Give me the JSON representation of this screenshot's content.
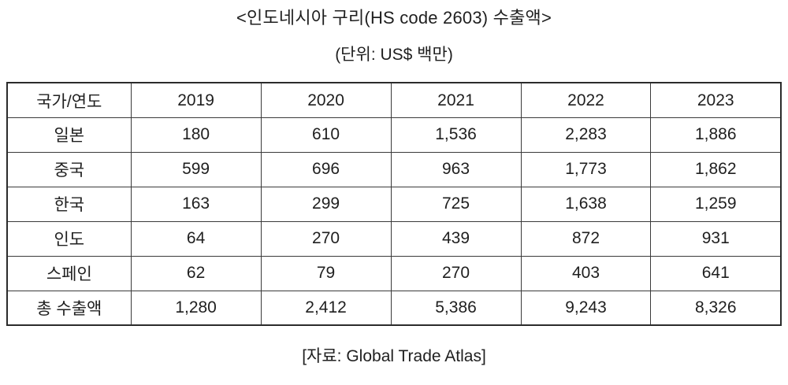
{
  "title": "<인도네시아 구리(HS code 2603) 수출액>",
  "unit_note": "(단위: US$ 백만)",
  "source": "[자료: Global Trade Atlas]",
  "colors": {
    "text": "#1f1f1f",
    "border_outer": "#2b2b2b",
    "border_inner": "#3a3a3a",
    "background": "#ffffff"
  },
  "chart_data": {
    "type": "table",
    "title": "<인도네시아 구리(HS code 2603) 수출액>",
    "unit": "(단위: US$ 백만)",
    "source": "[자료: Global Trade Atlas]",
    "columns": [
      "국가/연도",
      "2019",
      "2020",
      "2021",
      "2022",
      "2023"
    ],
    "rows": [
      {
        "label": "일본",
        "values": [
          "180",
          "610",
          "1,536",
          "2,283",
          "1,886"
        ]
      },
      {
        "label": "중국",
        "values": [
          "599",
          "696",
          "963",
          "1,773",
          "1,862"
        ]
      },
      {
        "label": "한국",
        "values": [
          "163",
          "299",
          "725",
          "1,638",
          "1,259"
        ]
      },
      {
        "label": "인도",
        "values": [
          "64",
          "270",
          "439",
          "872",
          "931"
        ]
      },
      {
        "label": "스페인",
        "values": [
          "62",
          "79",
          "270",
          "403",
          "641"
        ]
      },
      {
        "label": "총 수출액",
        "values": [
          "1,280",
          "2,412",
          "5,386",
          "9,243",
          "8,326"
        ]
      }
    ],
    "numeric_rows": [
      {
        "label": "일본",
        "values": [
          180,
          610,
          1536,
          2283,
          1886
        ]
      },
      {
        "label": "중국",
        "values": [
          599,
          696,
          963,
          1773,
          1862
        ]
      },
      {
        "label": "한국",
        "values": [
          163,
          299,
          725,
          1638,
          1259
        ]
      },
      {
        "label": "인도",
        "values": [
          64,
          270,
          439,
          872,
          931
        ]
      },
      {
        "label": "스페인",
        "values": [
          62,
          79,
          270,
          403,
          641
        ]
      },
      {
        "label": "총 수출액",
        "values": [
          1280,
          2412,
          5386,
          9243,
          8326
        ]
      }
    ]
  }
}
